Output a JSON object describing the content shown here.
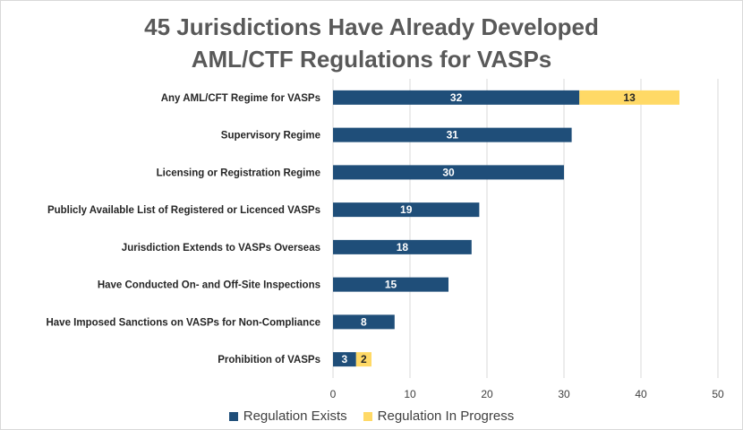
{
  "title_line1": "45 Jurisdictions Have Already Developed",
  "title_line2": "AML/CTF Regulations for VASPs",
  "chart_data": {
    "type": "bar",
    "orientation": "horizontal",
    "stacked": true,
    "categories": [
      "Any AML/CFT Regime for VASPs",
      "Supervisory Regime",
      "Licensing or Registration Regime",
      "Publicly Available List of Registered or Licenced VASPs",
      "Jurisdiction Extends to VASPs Overseas",
      "Have Conducted On- and Off-Site Inspections",
      "Have Imposed Sanctions on VASPs for Non-Compliance",
      "Prohibition of VASPs"
    ],
    "series": [
      {
        "name": "Regulation Exists",
        "color": "#1f4e79",
        "label_color": "#ffffff",
        "values": [
          32,
          31,
          30,
          19,
          18,
          15,
          8,
          3
        ]
      },
      {
        "name": "Regulation In Progress",
        "color": "#ffd966",
        "label_color": "#262626",
        "values": [
          13,
          null,
          null,
          null,
          null,
          null,
          null,
          2
        ]
      }
    ],
    "xlim": [
      0,
      50
    ],
    "xticks": [
      0,
      10,
      20,
      30,
      40,
      50
    ],
    "grid": true,
    "legend": "bottom-center"
  }
}
